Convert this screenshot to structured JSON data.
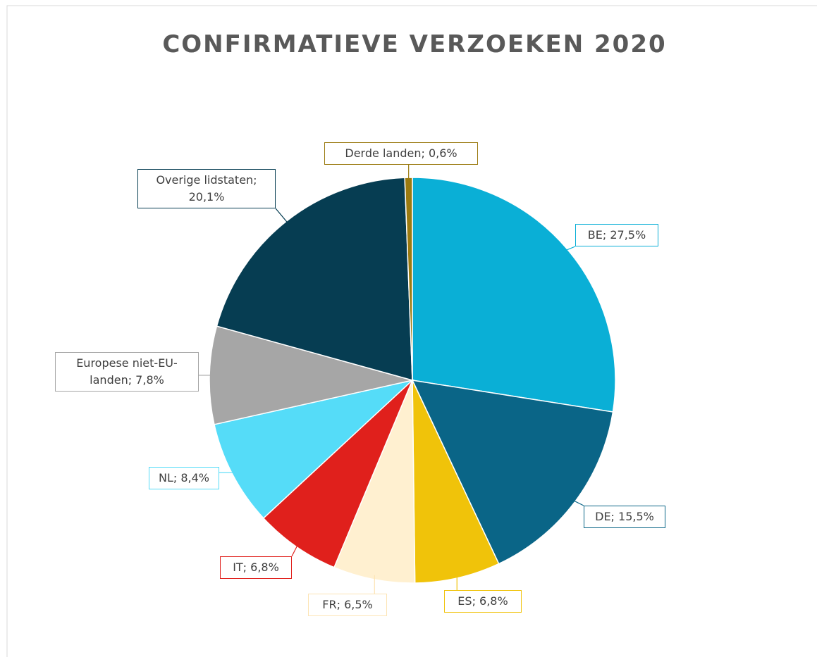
{
  "chart_data": {
    "type": "pie",
    "title": "CONFIRMATIEVE VERZOEKEN 2020",
    "values": [
      27.5,
      15.5,
      6.8,
      6.5,
      6.8,
      8.4,
      7.8,
      20.1,
      0.6
    ],
    "value_labels": [
      "BE; 27,5%",
      "DE; 15,5%",
      "ES; 6,8%",
      "FR; 6,5%",
      "IT; 6,8%",
      "NL; 8,4%",
      "Europese niet-EU-landen; 7,8%",
      "Overige lidstaten; 20,1%",
      "Derde landen; 0,6%"
    ],
    "colors": [
      "#0aafd6",
      "#0a6587",
      "#f0c30a",
      "#fff0d0",
      "#e0201c",
      "#55dcf8",
      "#a6a6a6",
      "#063d52",
      "#9a7a10"
    ]
  }
}
